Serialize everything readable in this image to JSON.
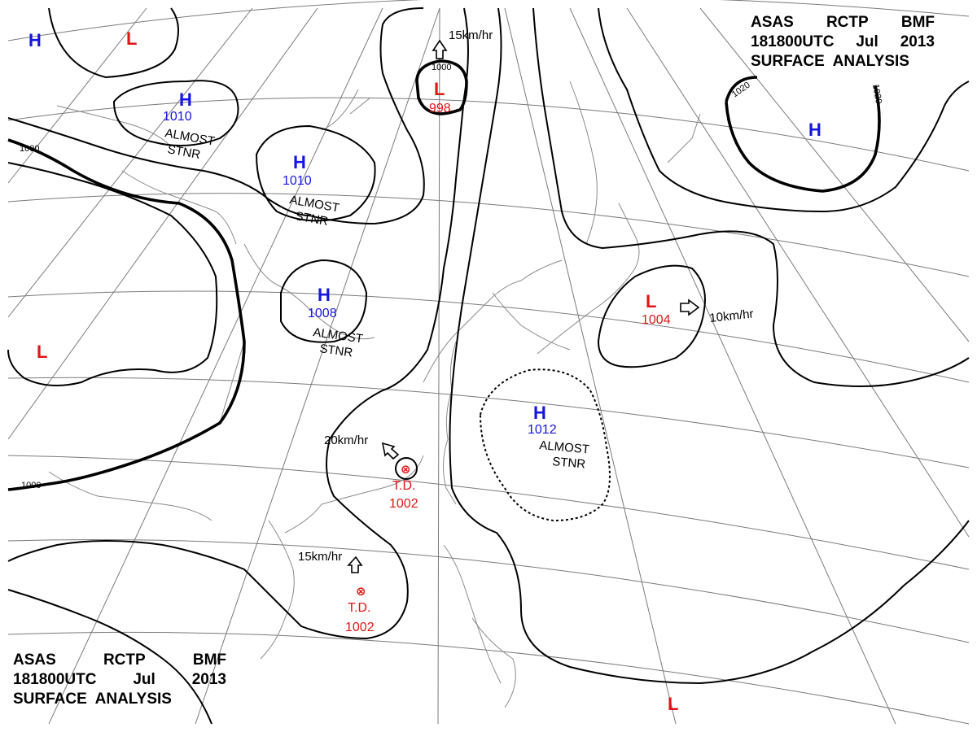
{
  "title": {
    "line1": [
      "ASAS",
      "RCTP",
      "BMF"
    ],
    "line2": [
      "181800UTC",
      "Jul",
      "2013"
    ],
    "line3": "SURFACE  ANALYSIS"
  },
  "colors": {
    "high": "#1515e0",
    "low": "#e01515",
    "isobar": "#000000",
    "grid": "#7a7a7a",
    "coast": "#8a8a8a"
  },
  "highs": [
    {
      "symbol": "H",
      "value": "",
      "motion": ""
    },
    {
      "symbol": "H",
      "value": "1010",
      "motion": "ALMOST STNR"
    },
    {
      "symbol": "H",
      "value": "1010",
      "motion": "ALMOST STNR"
    },
    {
      "symbol": "H",
      "value": "1008",
      "motion": "ALMOST STNR"
    },
    {
      "symbol": "H",
      "value": "1012",
      "motion": "ALMOST STNR"
    },
    {
      "symbol": "H",
      "value": "",
      "motion": ""
    }
  ],
  "lows": [
    {
      "symbol": "L",
      "value": ""
    },
    {
      "symbol": "L",
      "value": "998",
      "motion": "15km/hr"
    },
    {
      "symbol": "L",
      "value": ""
    },
    {
      "symbol": "L",
      "value": "1004",
      "motion": "10km/hr"
    },
    {
      "symbol": "L",
      "value": ""
    }
  ],
  "tropical_depressions": [
    {
      "symbol": "⊗",
      "label": "T.D.",
      "value": "1002",
      "motion": "20km/hr"
    },
    {
      "symbol": "⊗",
      "label": "T.D.",
      "value": "1002",
      "motion": "15km/hr"
    }
  ],
  "motion_words": {
    "almost": "ALMOST",
    "stnr": "STNR"
  },
  "isobar_labels": [
    "1000",
    "1000",
    "1000",
    "1020",
    "1020"
  ]
}
